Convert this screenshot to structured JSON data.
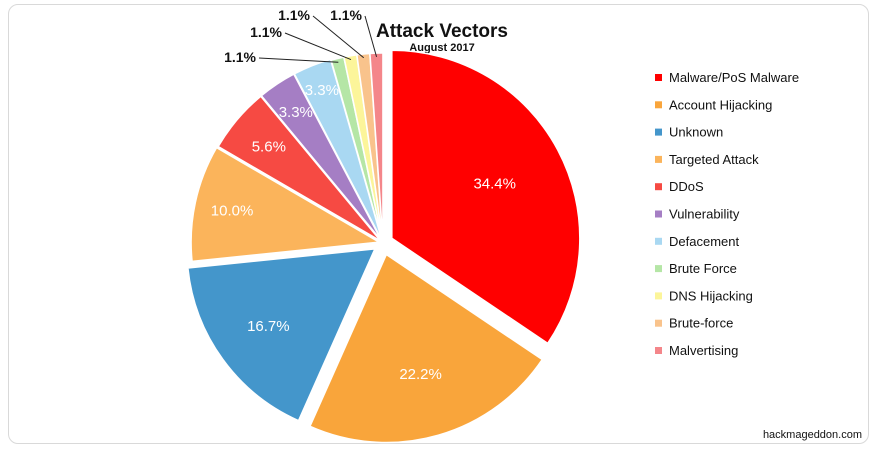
{
  "chart_data": {
    "type": "pie",
    "title": "Attack Vectors",
    "subtitle": "August 2017",
    "legend_position": "right",
    "slices": [
      {
        "name": "Malware/PoS Malware",
        "value": 34.4,
        "label": "34.4%",
        "color": "#ff0000"
      },
      {
        "name": "Account Hijacking",
        "value": 22.2,
        "label": "22.2%",
        "color": "#f9a53b"
      },
      {
        "name": "Unknown",
        "value": 16.7,
        "label": "16.7%",
        "color": "#4496cb"
      },
      {
        "name": "Targeted Attack",
        "value": 10.0,
        "label": "10.0%",
        "color": "#fbb45b"
      },
      {
        "name": "DDoS",
        "value": 5.6,
        "label": "5.6%",
        "color": "#f64a43"
      },
      {
        "name": "Vulnerability",
        "value": 3.3,
        "label": "3.3%",
        "color": "#a57ec4"
      },
      {
        "name": "Defacement",
        "value": 3.3,
        "label": "3.3%",
        "color": "#a9d8f2"
      },
      {
        "name": "Brute Force",
        "value": 1.1,
        "label": "1.1%",
        "color": "#b5e6a6"
      },
      {
        "name": "DNS Hijacking",
        "value": 1.1,
        "label": "1.1%",
        "color": "#fcf59a"
      },
      {
        "name": "Brute-force",
        "value": 1.1,
        "label": "1.1%",
        "color": "#f9c38c"
      },
      {
        "name": "Malvertising",
        "value": 1.1,
        "label": "1.1%",
        "color": "#f4868a"
      }
    ]
  },
  "credit": "hackmageddon.com"
}
